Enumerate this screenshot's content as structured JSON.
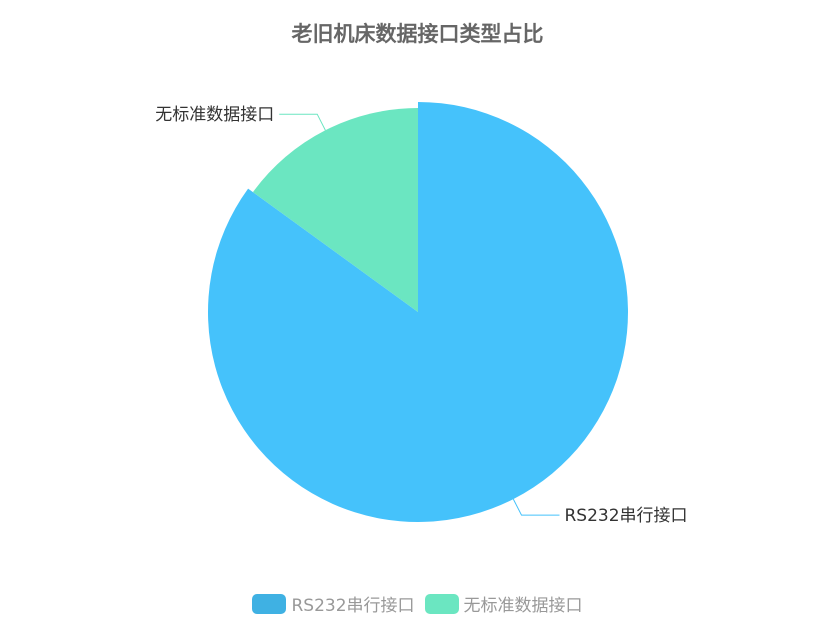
{
  "chart_data": {
    "type": "pie",
    "title": "老旧机床数据接口类型占比",
    "slices": [
      {
        "name": "RS232串行接口",
        "value": 85,
        "color": "#3fb1e3",
        "emphasis_color": "#45c2fb"
      },
      {
        "name": "无标准数据接口",
        "value": 15,
        "color": "#6be6c1"
      }
    ],
    "legend_position": "bottom"
  }
}
